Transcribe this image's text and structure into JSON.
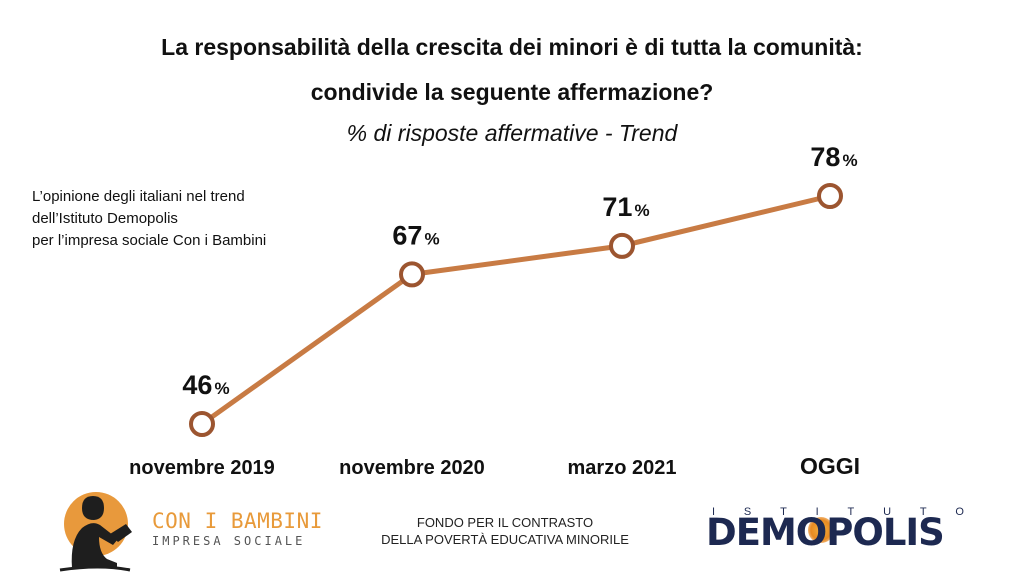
{
  "title_line1": "La responsabilità della crescita dei minori è di tutta la comunità:",
  "title_line2": "condivide la seguente affermazione?",
  "subtitle": "% di risposte affermative - Trend",
  "note": [
    "L’opinione degli italiani nel trend",
    "dell’Istituto Demopolis",
    "per l’impresa sociale Con i Bambini"
  ],
  "chart_data": {
    "type": "line",
    "categories": [
      "novembre 2019",
      "novembre 2020",
      "marzo 2021",
      "OGGI"
    ],
    "series": [
      {
        "values": [
          46,
          67,
          71,
          78
        ]
      }
    ],
    "value_suffix": "%",
    "title": "La responsabilità della crescita dei minori è di tutta la comunità: condivide la seguente affermazione?",
    "subtitle": "% di risposte affermative - Trend",
    "xlabel": "",
    "ylabel": "",
    "grid": false,
    "line_color": "#c87b44"
  },
  "footer": {
    "brand_name": "CON I BAMBINI",
    "brand_sub": "IMPRESA SOCIALE",
    "fondo_line1": "FONDO PER IL CONTRASTO",
    "fondo_line2": "DELLA POVERTÀ EDUCATIVA MINORILE",
    "demopolis_top": [
      "I",
      "S",
      "T",
      "I",
      "T",
      "U",
      "T",
      "O"
    ],
    "demopolis_main": "DEMOPOLIS"
  }
}
